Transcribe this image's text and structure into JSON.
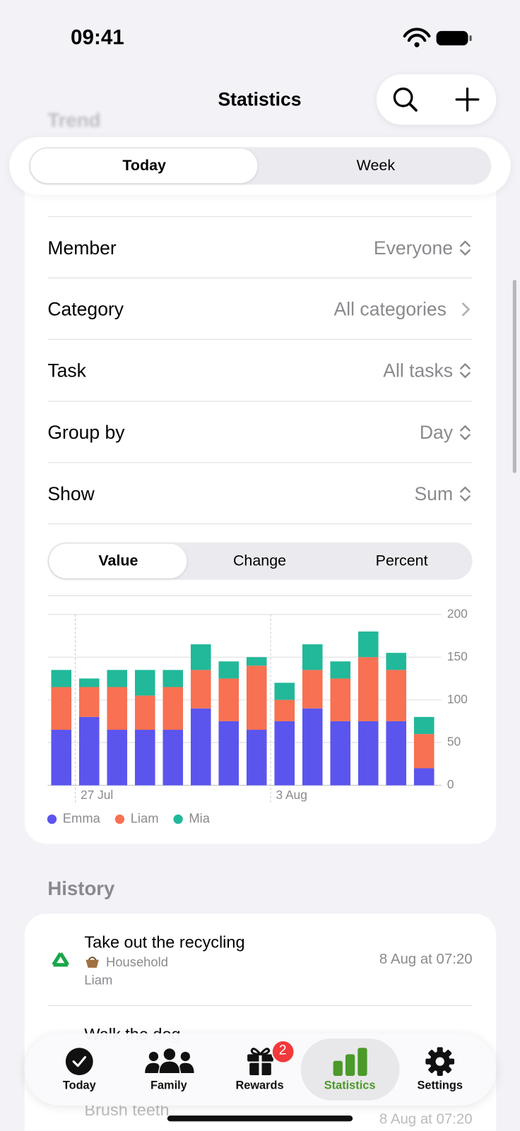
{
  "status_bar": {
    "time": "09:41"
  },
  "background_section": "Trend",
  "nav": {
    "title": "Statistics"
  },
  "period_segment": [
    "Today",
    "Week"
  ],
  "filters": [
    {
      "label": "Member",
      "value": "Everyone"
    },
    {
      "label": "Category",
      "value": "All categories"
    },
    {
      "label": "Task",
      "value": "All tasks"
    },
    {
      "label": "Group by",
      "value": "Day"
    },
    {
      "label": "Show",
      "value": "Sum"
    }
  ],
  "mode_segment": [
    "Value",
    "Change",
    "Percent"
  ],
  "chart_data": {
    "type": "stacked_bar",
    "categories": [
      null,
      "27 Jul",
      null,
      null,
      null,
      null,
      null,
      null,
      "3 Aug",
      null,
      null,
      null,
      null,
      null
    ],
    "series": [
      {
        "name": "Emma",
        "color": "#5b55ee",
        "values": [
          65,
          80,
          65,
          65,
          65,
          90,
          75,
          65,
          75,
          90,
          75,
          75,
          75,
          20
        ]
      },
      {
        "name": "Liam",
        "color": "#f77152",
        "values": [
          50,
          35,
          50,
          40,
          50,
          45,
          50,
          75,
          25,
          45,
          50,
          75,
          60,
          40
        ]
      },
      {
        "name": "Mia",
        "color": "#22b89a",
        "values": [
          20,
          10,
          20,
          30,
          20,
          30,
          20,
          10,
          20,
          30,
          20,
          30,
          20,
          20
        ]
      }
    ],
    "ylim": [
      0,
      200
    ],
    "yticks": [
      0,
      50,
      100,
      150,
      200
    ],
    "grid": true
  },
  "history": {
    "title": "History",
    "items": [
      {
        "title": "Take out the recycling",
        "category": "Household",
        "member": "Liam",
        "time": "8 Aug at 07:20"
      },
      {
        "title": "Walk the dog"
      },
      {
        "title": "Brush teeth",
        "time": "8 Aug at 07:20"
      }
    ]
  },
  "tabs": [
    {
      "label": "Today"
    },
    {
      "label": "Family"
    },
    {
      "label": "Rewards",
      "badge": "2"
    },
    {
      "label": "Statistics"
    },
    {
      "label": "Settings"
    }
  ]
}
